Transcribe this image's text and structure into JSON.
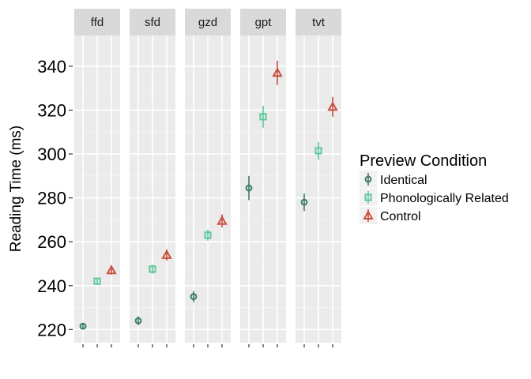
{
  "chart_data": {
    "type": "scatter",
    "ylabel": "Reading Time (ms)",
    "xlabel": "",
    "ylim": [
      214,
      354
    ],
    "yticks": [
      220,
      240,
      260,
      280,
      300,
      320,
      340
    ],
    "grid": true,
    "legend": {
      "title": "Preview Condition",
      "placement": "right"
    },
    "series": [
      {
        "name": "Identical",
        "color": "#3d7d63",
        "shape": "circle"
      },
      {
        "name": "Phonologically Related",
        "color": "#5ec99b",
        "shape": "square"
      },
      {
        "name": "Control",
        "color": "#c9503f",
        "shape": "triangle"
      }
    ],
    "panels": [
      {
        "label": "ffd",
        "values": [
          221.5,
          242,
          247
        ],
        "ci": [
          [
            220,
            223
          ],
          [
            240.5,
            243.5
          ],
          [
            245,
            249
          ]
        ]
      },
      {
        "label": "sfd",
        "values": [
          224,
          247.5,
          254
        ],
        "ci": [
          [
            222,
            226
          ],
          [
            245.5,
            249.5
          ],
          [
            251.5,
            256.5
          ]
        ]
      },
      {
        "label": "gzd",
        "values": [
          235,
          263,
          269.5
        ],
        "ci": [
          [
            232.5,
            237.5
          ],
          [
            260.5,
            265.5
          ],
          [
            266.5,
            272.5
          ]
        ]
      },
      {
        "label": "gpt",
        "values": [
          284.5,
          317,
          337
        ],
        "ci": [
          [
            279,
            290
          ],
          [
            312,
            322
          ],
          [
            331.5,
            342.5
          ]
        ]
      },
      {
        "label": "tvt",
        "values": [
          278,
          301.5,
          321.5
        ],
        "ci": [
          [
            274,
            282
          ],
          [
            297.5,
            305.5
          ],
          [
            317,
            326
          ]
        ]
      }
    ]
  }
}
